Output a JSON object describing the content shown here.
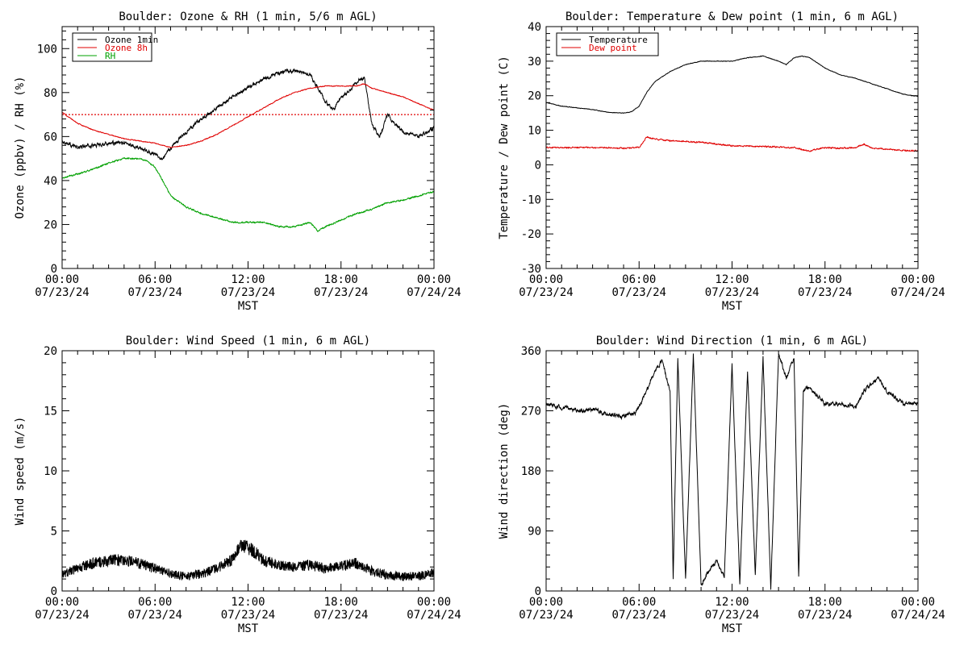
{
  "chart_data": [
    {
      "type": "line",
      "title": "Boulder: Ozone & RH (1 min, 5/6 m AGL)",
      "xlabel": "MST",
      "ylabel": "Ozone (ppbv) / RH (%)",
      "xlim": [
        0,
        24
      ],
      "ylim": [
        0,
        110
      ],
      "x_ticks": [
        0,
        6,
        12,
        18,
        24
      ],
      "x_tick_labels": [
        [
          "00:00",
          "07/23/24"
        ],
        [
          "06:00",
          "07/23/24"
        ],
        [
          "12:00",
          "07/23/24"
        ],
        [
          "18:00",
          "07/23/24"
        ],
        [
          "00:00",
          "07/24/24"
        ]
      ],
      "y_ticks": [
        0,
        20,
        40,
        60,
        80,
        100
      ],
      "legend_position": "top-left",
      "reference_line": {
        "y": 70,
        "color": "#e00000",
        "style": "dotted"
      },
      "series": [
        {
          "name": "Ozone 1min",
          "color": "#000000",
          "x": [
            0,
            1,
            2,
            3,
            4,
            5,
            6,
            6.5,
            7,
            8,
            9,
            10,
            11,
            12,
            13,
            14,
            15,
            16,
            16.5,
            17,
            17.5,
            18,
            18.5,
            19,
            19.5,
            20,
            20.5,
            21,
            22,
            23,
            24
          ],
          "y": [
            58,
            55,
            56,
            57,
            57,
            55,
            52,
            50,
            55,
            62,
            68,
            73,
            78,
            82,
            86,
            89,
            90,
            88,
            82,
            76,
            72,
            78,
            80,
            85,
            87,
            65,
            60,
            70,
            62,
            60,
            64
          ]
        },
        {
          "name": "Ozone 8h",
          "color": "#e00000",
          "x": [
            0,
            1,
            2,
            3,
            4,
            5,
            6,
            6.5,
            7,
            8,
            9,
            10,
            11,
            12,
            13,
            14,
            15,
            16,
            17,
            18,
            19,
            19.5,
            20,
            21,
            22,
            23,
            24
          ],
          "y": [
            71,
            66,
            63,
            61,
            59,
            58,
            57,
            56,
            55,
            56,
            58,
            61,
            65,
            69,
            73,
            77,
            80,
            82,
            83,
            83,
            83,
            84,
            82,
            80,
            78,
            75,
            72
          ]
        },
        {
          "name": "RH",
          "color": "#00a000",
          "x": [
            0,
            1,
            2,
            3,
            4,
            5,
            5.5,
            6,
            6.5,
            7,
            8,
            9,
            10,
            11,
            12,
            13,
            14,
            15,
            16,
            16.5,
            17,
            18,
            19,
            20,
            21,
            22,
            23,
            24
          ],
          "y": [
            41,
            43,
            45,
            48,
            50,
            50,
            49,
            46,
            40,
            33,
            28,
            25,
            23,
            21,
            21,
            21,
            19,
            19,
            21,
            17,
            19,
            22,
            25,
            27,
            30,
            31,
            33,
            35
          ]
        }
      ]
    },
    {
      "type": "line",
      "title": "Boulder: Temperature & Dew point (1 min, 6 m AGL)",
      "xlabel": "MST",
      "ylabel": "Temperature / Dew point (C)",
      "xlim": [
        0,
        24
      ],
      "ylim": [
        -30,
        40
      ],
      "x_ticks": [
        0,
        6,
        12,
        18,
        24
      ],
      "x_tick_labels": [
        [
          "00:00",
          "07/23/24"
        ],
        [
          "06:00",
          "07/23/24"
        ],
        [
          "12:00",
          "07/23/24"
        ],
        [
          "18:00",
          "07/23/24"
        ],
        [
          "00:00",
          "07/24/24"
        ]
      ],
      "y_ticks": [
        -30,
        -20,
        -10,
        0,
        10,
        20,
        30,
        40
      ],
      "legend_position": "top-left",
      "series": [
        {
          "name": "Temperature",
          "color": "#000000",
          "x": [
            0,
            1,
            2,
            3,
            4,
            5,
            5.5,
            6,
            6.5,
            7,
            8,
            9,
            10,
            11,
            12,
            13,
            14,
            15,
            15.5,
            16,
            16.5,
            17,
            18,
            19,
            20,
            21,
            22,
            23,
            24
          ],
          "y": [
            18,
            17,
            16.5,
            16,
            15.2,
            15,
            15.3,
            17,
            21,
            24,
            27,
            29,
            30,
            30,
            30,
            31,
            31.5,
            30,
            29,
            31,
            31.5,
            31,
            28,
            26,
            25,
            23.5,
            22,
            20.5,
            19.8
          ]
        },
        {
          "name": "Dew point",
          "color": "#e00000",
          "x": [
            0,
            2,
            4,
            5,
            6,
            6.5,
            7,
            8,
            9,
            10,
            11,
            12,
            14,
            16,
            17,
            18,
            19,
            20,
            20.5,
            21,
            22,
            23,
            24
          ],
          "y": [
            5,
            5,
            5,
            4.8,
            5,
            8,
            7.5,
            7,
            6.8,
            6.5,
            6,
            5.5,
            5.3,
            5,
            4,
            5,
            4.8,
            5,
            6,
            5,
            4.5,
            4.2,
            4
          ]
        }
      ]
    },
    {
      "type": "line",
      "title": "Boulder: Wind Speed (1 min, 6 m AGL)",
      "xlabel": "MST",
      "ylabel": "Wind speed (m/s)",
      "xlim": [
        0,
        24
      ],
      "ylim": [
        0,
        20
      ],
      "x_ticks": [
        0,
        6,
        12,
        18,
        24
      ],
      "x_tick_labels": [
        [
          "00:00",
          "07/23/24"
        ],
        [
          "06:00",
          "07/23/24"
        ],
        [
          "12:00",
          "07/23/24"
        ],
        [
          "18:00",
          "07/23/24"
        ],
        [
          "00:00",
          "07/24/24"
        ]
      ],
      "y_ticks": [
        0,
        5,
        10,
        15,
        20
      ],
      "series": [
        {
          "color": "#000000",
          "x": [
            0,
            1,
            2,
            3,
            4,
            5,
            6,
            7,
            8,
            9,
            10,
            11,
            11.5,
            12,
            12.5,
            13,
            14,
            15,
            16,
            17,
            18,
            19,
            20,
            21,
            22,
            23,
            24
          ],
          "y": [
            1.2,
            1.6,
            2.0,
            2.2,
            2.3,
            2.0,
            1.6,
            1.2,
            1.0,
            1.2,
            1.6,
            2.3,
            3.3,
            3.2,
            2.8,
            2.2,
            1.9,
            1.7,
            1.9,
            1.6,
            1.8,
            2.0,
            1.4,
            1.1,
            1.0,
            1.0,
            1.3
          ]
        }
      ]
    },
    {
      "type": "line",
      "title": "Boulder: Wind Direction (1 min, 6 m AGL)",
      "xlabel": "MST",
      "ylabel": "Wind direction (deg)",
      "xlim": [
        0,
        24
      ],
      "ylim": [
        0,
        360
      ],
      "x_ticks": [
        0,
        6,
        12,
        18,
        24
      ],
      "x_tick_labels": [
        [
          "00:00",
          "07/23/24"
        ],
        [
          "06:00",
          "07/23/24"
        ],
        [
          "12:00",
          "07/23/24"
        ],
        [
          "18:00",
          "07/23/24"
        ],
        [
          "00:00",
          "07/24/24"
        ]
      ],
      "y_ticks": [
        0,
        90,
        180,
        270,
        360
      ],
      "series": [
        {
          "color": "#000000",
          "x": [
            0,
            1,
            2,
            3,
            4,
            5,
            5.8,
            6.5,
            7,
            7.5,
            8,
            8.2,
            8.5,
            9,
            9.5,
            10,
            10.5,
            11,
            11.5,
            12,
            12.5,
            13,
            13.5,
            14,
            14.5,
            15,
            15.5,
            16,
            16.3,
            16.6,
            17,
            18,
            19,
            20,
            20.5,
            21,
            21.5,
            22,
            22.5,
            23,
            24
          ],
          "y": [
            280,
            275,
            270,
            272,
            265,
            262,
            268,
            300,
            330,
            345,
            300,
            20,
            350,
            15,
            355,
            10,
            30,
            45,
            20,
            340,
            10,
            330,
            25,
            350,
            5,
            355,
            320,
            350,
            20,
            300,
            305,
            280,
            280,
            276,
            300,
            310,
            320,
            300,
            290,
            280,
            282
          ]
        }
      ]
    }
  ]
}
